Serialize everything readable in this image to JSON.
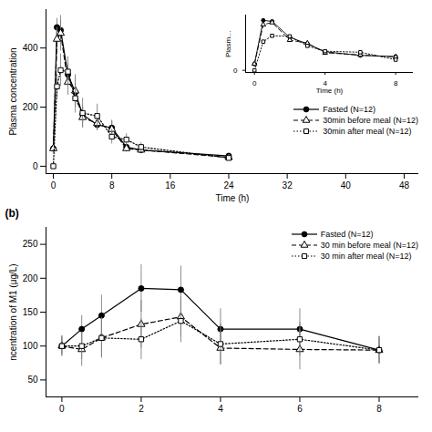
{
  "chart_data": [
    {
      "type": "line",
      "x": [
        0,
        0.5,
        1,
        2,
        3,
        4,
        6,
        8,
        10,
        12,
        24
      ],
      "xlabel": "Time (h)",
      "ylabel": "Plasma concentration",
      "xlim": [
        -1,
        50
      ],
      "xticks": [
        0,
        8,
        16,
        24,
        32,
        40,
        48
      ],
      "ylim": [
        -25,
        530
      ],
      "yticks": [
        0,
        200,
        400
      ],
      "legend": "right",
      "series": [
        {
          "name": "Fasted (N=12)",
          "color": "black",
          "marker": "circle",
          "line_style": "solid",
          "values": [
            60,
            470,
            460,
            310,
            250,
            175,
            140,
            130,
            65,
            55,
            35
          ],
          "yerr": [
            10,
            30,
            35,
            40,
            50,
            30,
            20,
            25,
            10,
            10,
            8
          ]
        },
        {
          "name": "30min before meal (N=12)",
          "color": "black",
          "marker": "triangle-open",
          "line_style": "dashed",
          "values": [
            60,
            430,
            450,
            285,
            255,
            165,
            145,
            125,
            60,
            55,
            30
          ],
          "yerr": [
            15,
            40,
            60,
            45,
            55,
            35,
            25,
            30,
            12,
            12,
            8
          ]
        },
        {
          "name": "30min after meal (N=12)",
          "color": "black",
          "marker": "square-open",
          "line_style": "dotted",
          "values": [
            0,
            270,
            325,
            320,
            230,
            180,
            170,
            100,
            90,
            65,
            28
          ],
          "yerr": [
            0,
            40,
            55,
            50,
            50,
            50,
            40,
            25,
            20,
            15,
            8
          ]
        }
      ]
    },
    {
      "type": "line",
      "x": [
        0,
        0.5,
        1,
        2,
        3,
        4,
        6,
        8
      ],
      "xlabel": "Time (h)",
      "ylabel": "Plasm…",
      "xlim": [
        -0.5,
        9
      ],
      "xticks": [
        0,
        4,
        8
      ],
      "ylim": [
        -20,
        520
      ],
      "yticks": [
        0
      ],
      "series": [
        {
          "color": "black",
          "marker": "circle",
          "line_style": "solid",
          "values": [
            60,
            470,
            460,
            310,
            250,
            175,
            140,
            130
          ]
        },
        {
          "color": "black",
          "marker": "triangle-open",
          "line_style": "dashed",
          "values": [
            60,
            430,
            450,
            285,
            255,
            165,
            145,
            125
          ]
        },
        {
          "color": "black",
          "marker": "square-open",
          "line_style": "dotted",
          "values": [
            0,
            270,
            325,
            320,
            230,
            180,
            170,
            100
          ]
        }
      ]
    },
    {
      "type": "line",
      "title": "(b)",
      "x": [
        0,
        0.5,
        1,
        2,
        3,
        4,
        6,
        8
      ],
      "ylabel": "ncentration of M1 (μg/L)",
      "xlim": [
        -0.4,
        9
      ],
      "xticks": [
        0,
        2,
        4,
        6,
        8
      ],
      "ylim": [
        25,
        275
      ],
      "yticks": [
        50,
        100,
        150,
        200,
        250
      ],
      "legend": "upper right",
      "series": [
        {
          "name": "Fasted (N=12)",
          "color": "black",
          "marker": "circle",
          "line_style": "solid",
          "values": [
            100,
            125,
            145,
            185,
            183,
            125,
            125,
            94
          ],
          "yerr": [
            12,
            20,
            30,
            35,
            35,
            30,
            30,
            20
          ]
        },
        {
          "name": "30 min before meal (N=12)",
          "color": "black",
          "marker": "triangle-open",
          "line_style": "dashed",
          "values": [
            100,
            95,
            112,
            132,
            143,
            97,
            95,
            94
          ],
          "yerr": [
            15,
            25,
            30,
            35,
            30,
            25,
            30,
            20
          ]
        },
        {
          "name": "30 min after meal (N=12)",
          "color": "black",
          "marker": "square-open",
          "line_style": "dotted",
          "values": [
            100,
            100,
            112,
            110,
            137,
            103,
            110,
            94
          ],
          "yerr": [
            15,
            20,
            28,
            30,
            32,
            30,
            25,
            20
          ]
        }
      ]
    }
  ]
}
